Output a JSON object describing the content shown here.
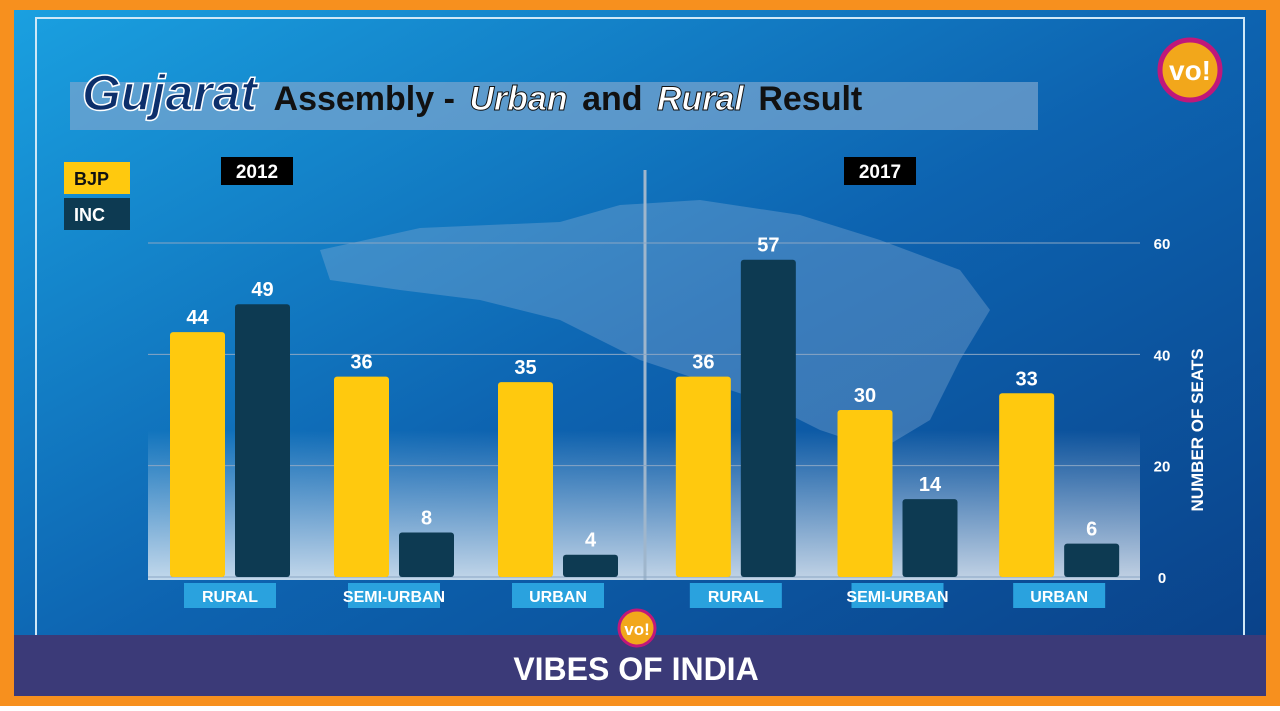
{
  "chart_data": {
    "type": "bar",
    "title": [
      "Gujarat",
      "Assembly -",
      "Urban",
      "and",
      "Rural",
      "Result"
    ],
    "periods": [
      "2012",
      "2017"
    ],
    "categories": [
      "RURAL",
      "SEMI-URBAN",
      "URBAN",
      "RURAL",
      "SEMI-URBAN",
      "URBAN"
    ],
    "series": [
      {
        "name": "BJP",
        "color": "#ffc90e",
        "values": [
          44,
          36,
          35,
          36,
          30,
          33
        ]
      },
      {
        "name": "INC",
        "color": "#0d3a52",
        "values": [
          49,
          8,
          4,
          57,
          14,
          6
        ]
      }
    ],
    "y_label": "NUMBER OF SEATS",
    "ylim": [
      0,
      60
    ],
    "yticks": [
      0,
      20,
      40,
      60
    ],
    "grid": true,
    "logo": "vo!",
    "brand": "VIBES OF INDIA"
  }
}
